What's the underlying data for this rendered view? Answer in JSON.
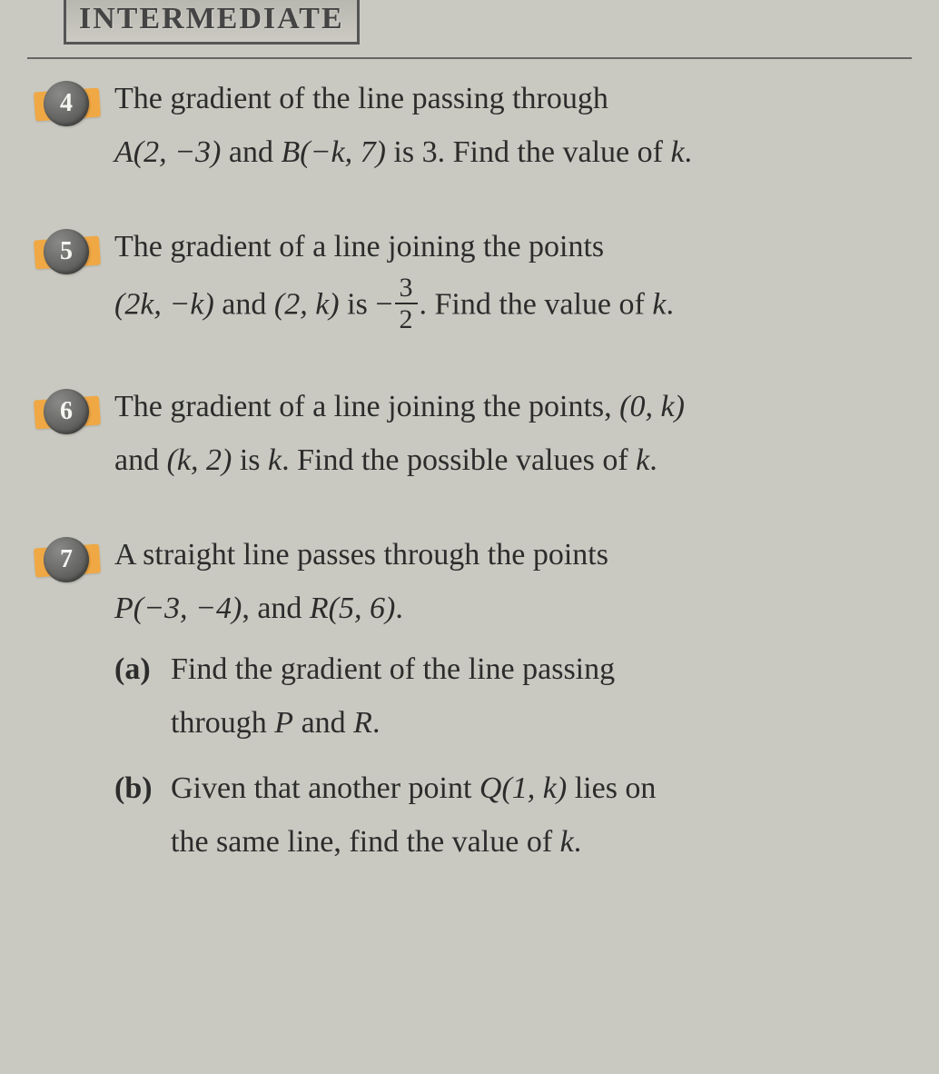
{
  "colors": {
    "page_background": "#c9c9c1",
    "text_color": "#2c2c2c",
    "badge_bg_light": "#8a8a88",
    "badge_bg_dark": "#5c5c5a",
    "badge_text": "#f5f5f2",
    "highlight": "#f4a63a",
    "border": "#555555"
  },
  "typography": {
    "body_fontsize_pt": 26,
    "header_fontsize_pt": 26,
    "font_family": "Georgia, serif"
  },
  "header": {
    "label": "INTERMEDIATE"
  },
  "questions": [
    {
      "number": "4",
      "highlighted": true,
      "line1": "The gradient of the line passing through",
      "line2_pre": "",
      "pointA": "A(2, −3)",
      "mid_and": " and ",
      "pointB": "B(−k, 7)",
      "line2_post": " is 3. Find the value of ",
      "var": "k",
      "tail": "."
    },
    {
      "number": "5",
      "highlighted": true,
      "line1": "The gradient of a line joining the points",
      "pointA": "(2k, −k)",
      "mid_and": " and ",
      "pointB": "(2, k)",
      "is_text": " is ",
      "minus": "−",
      "frac_num": "3",
      "frac_den": "2",
      "line2_post": ". Find the value of ",
      "var": "k",
      "tail": "."
    },
    {
      "number": "6",
      "highlighted": true,
      "line1_pre": "The gradient of a line joining the points, ",
      "pointA": "(0, k)",
      "line2_pre": "and ",
      "pointB": "(k, 2)",
      "is_text": " is ",
      "var1": "k",
      "line2_post": ". Find the possible values of ",
      "var2": "k",
      "tail": "."
    },
    {
      "number": "7",
      "highlighted": true,
      "line1": "A straight line passes through the points",
      "pointP": "P(−3, −4)",
      "comma_and": ", and ",
      "pointR": "R(5, 6)",
      "tail1": ".",
      "sub_a_label": "(a)",
      "sub_a_line1": "Find the gradient of the line passing",
      "sub_a_line2_pre": "through ",
      "sub_a_P": "P",
      "sub_a_and": " and ",
      "sub_a_R": "R",
      "sub_a_tail": ".",
      "sub_b_label": "(b)",
      "sub_b_line1_pre": "Given that another point ",
      "sub_b_Q": "Q(1, k)",
      "sub_b_line1_post": " lies on",
      "sub_b_line2_pre": "the same line, find the value of ",
      "sub_b_var": "k",
      "sub_b_tail": "."
    }
  ]
}
